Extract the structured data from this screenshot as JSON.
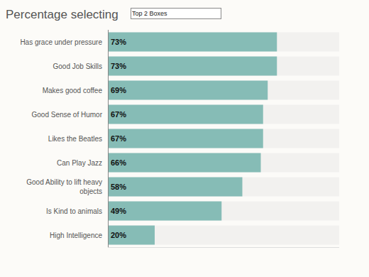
{
  "chart_data": {
    "type": "bar",
    "orientation": "horizontal",
    "title": "Percentage selecting",
    "subtitle": "Top 2 Boxes",
    "categories": [
      "Has grace under pressure",
      "Good Job Skills",
      "Makes good coffee",
      "Good Sense of Humor",
      "Likes the Beatles",
      "Can Play Jazz",
      "Good Ability to lift heavy objects",
      "Is Kind to animals",
      "High Intelligence"
    ],
    "values": [
      73,
      73,
      69,
      67,
      67,
      66,
      58,
      49,
      20
    ],
    "value_labels": [
      "73%",
      "73%",
      "69%",
      "67%",
      "67%",
      "66%",
      "58%",
      "49%",
      "20%"
    ],
    "data_labels": true,
    "color": "#86bcb6",
    "xlim": [
      0,
      100
    ],
    "xticks": [],
    "tick_labels": "y",
    "grid": false
  }
}
